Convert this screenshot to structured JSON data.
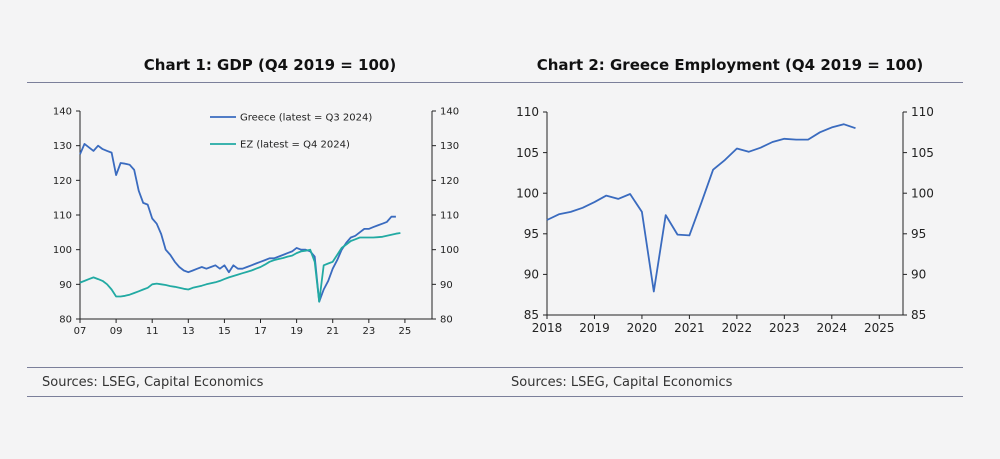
{
  "chart_data": [
    {
      "type": "line",
      "title": "Chart 1: GDP (Q4 2019 = 100)",
      "xlabel": "",
      "ylabel": "",
      "xlim": [
        2007,
        2026.5
      ],
      "ylim": [
        80,
        140
      ],
      "xticks": [
        2007,
        2009,
        2011,
        2013,
        2015,
        2017,
        2019,
        2021,
        2023,
        2025
      ],
      "xtick_labels": [
        "07",
        "09",
        "11",
        "13",
        "15",
        "17",
        "19",
        "21",
        "23",
        "25"
      ],
      "yticks": [
        80,
        90,
        100,
        110,
        120,
        130,
        140
      ],
      "y_axis_right": true,
      "grid": false,
      "legend_position": "top-center",
      "source": "Sources: LSEG, Capital Economics",
      "series": [
        {
          "name": "Greece (latest = Q3 2024)",
          "color": "#3a6bbf",
          "x": [
            2007.0,
            2007.25,
            2007.5,
            2007.75,
            2008.0,
            2008.25,
            2008.5,
            2008.75,
            2009.0,
            2009.25,
            2009.5,
            2009.75,
            2010.0,
            2010.25,
            2010.5,
            2010.75,
            2011.0,
            2011.25,
            2011.5,
            2011.75,
            2012.0,
            2012.25,
            2012.5,
            2012.75,
            2013.0,
            2013.25,
            2013.5,
            2013.75,
            2014.0,
            2014.25,
            2014.5,
            2014.75,
            2015.0,
            2015.25,
            2015.5,
            2015.75,
            2016.0,
            2016.25,
            2016.5,
            2016.75,
            2017.0,
            2017.25,
            2017.5,
            2017.75,
            2018.0,
            2018.25,
            2018.5,
            2018.75,
            2019.0,
            2019.25,
            2019.5,
            2019.75,
            2020.0,
            2020.25,
            2020.5,
            2020.75,
            2021.0,
            2021.25,
            2021.5,
            2021.75,
            2022.0,
            2022.25,
            2022.5,
            2022.75,
            2023.0,
            2023.25,
            2023.5,
            2023.75,
            2024.0,
            2024.25,
            2024.5
          ],
          "values": [
            127.5,
            130.5,
            129.5,
            128.5,
            130.0,
            129.0,
            128.5,
            128.0,
            121.5,
            125.0,
            124.8,
            124.5,
            123.0,
            117.0,
            113.5,
            113.0,
            109.0,
            107.5,
            104.5,
            100.0,
            98.5,
            96.5,
            95.0,
            94.0,
            93.5,
            94.0,
            94.5,
            95.0,
            94.5,
            95.0,
            95.5,
            94.5,
            95.5,
            93.5,
            95.5,
            94.5,
            94.5,
            95.0,
            95.5,
            96.0,
            96.5,
            97.0,
            97.5,
            97.5,
            98.0,
            98.5,
            99.0,
            99.5,
            100.5,
            100.0,
            100.0,
            99.5,
            98.0,
            85.0,
            88.5,
            91.0,
            94.5,
            97.0,
            100.0,
            102.0,
            103.5,
            104.0,
            105.0,
            106.0,
            106.0,
            106.5,
            107.0,
            107.5,
            108.0,
            109.5,
            109.5
          ]
        },
        {
          "name": "EZ (latest = Q4 2024)",
          "color": "#22aaa3",
          "x": [
            2007.0,
            2007.25,
            2007.5,
            2007.75,
            2008.0,
            2008.25,
            2008.5,
            2008.75,
            2009.0,
            2009.25,
            2009.5,
            2009.75,
            2010.0,
            2010.25,
            2010.5,
            2010.75,
            2011.0,
            2011.25,
            2011.5,
            2011.75,
            2012.0,
            2012.25,
            2012.5,
            2012.75,
            2013.0,
            2013.25,
            2013.5,
            2013.75,
            2014.0,
            2014.25,
            2014.5,
            2014.75,
            2015.0,
            2015.25,
            2015.5,
            2015.75,
            2016.0,
            2016.25,
            2016.5,
            2016.75,
            2017.0,
            2017.25,
            2017.5,
            2017.75,
            2018.0,
            2018.25,
            2018.5,
            2018.75,
            2019.0,
            2019.25,
            2019.5,
            2019.75,
            2020.0,
            2020.25,
            2020.5,
            2020.75,
            2021.0,
            2021.25,
            2021.5,
            2021.75,
            2022.0,
            2022.25,
            2022.5,
            2022.75,
            2023.0,
            2023.25,
            2023.5,
            2023.75,
            2024.0,
            2024.25,
            2024.5,
            2024.75
          ],
          "values": [
            90.5,
            91.0,
            91.5,
            92.0,
            91.5,
            91.0,
            90.0,
            88.5,
            86.5,
            86.5,
            86.7,
            87.0,
            87.5,
            88.0,
            88.5,
            89.0,
            90.0,
            90.2,
            90.0,
            89.8,
            89.5,
            89.3,
            89.0,
            88.7,
            88.5,
            89.0,
            89.3,
            89.6,
            90.0,
            90.3,
            90.6,
            91.0,
            91.5,
            92.0,
            92.4,
            92.8,
            93.2,
            93.6,
            94.0,
            94.5,
            95.0,
            95.7,
            96.5,
            97.0,
            97.3,
            97.6,
            98.0,
            98.3,
            99.0,
            99.5,
            99.7,
            100.0,
            96.5,
            85.0,
            95.5,
            96.0,
            96.5,
            98.5,
            100.5,
            101.5,
            102.5,
            103.0,
            103.5,
            103.5,
            103.5,
            103.5,
            103.6,
            103.7,
            104.0,
            104.3,
            104.6,
            104.8
          ]
        }
      ]
    },
    {
      "type": "line",
      "title": "Chart 2: Greece Employment (Q4 2019 = 100)",
      "xlabel": "",
      "ylabel": "",
      "xlim": [
        2018,
        2025.5
      ],
      "ylim": [
        85,
        110
      ],
      "xticks": [
        2018,
        2019,
        2020,
        2021,
        2022,
        2023,
        2024,
        2025
      ],
      "xtick_labels": [
        "2018",
        "2019",
        "2020",
        "2021",
        "2022",
        "2023",
        "2024",
        "2025"
      ],
      "yticks": [
        85,
        90,
        95,
        100,
        105,
        110
      ],
      "y_axis_right": true,
      "grid": false,
      "source": "Sources: LSEG, Capital Economics",
      "series": [
        {
          "color": "#3a6bbf",
          "x": [
            2018.0,
            2018.25,
            2018.5,
            2018.75,
            2019.0,
            2019.25,
            2019.5,
            2019.75,
            2020.0,
            2020.25,
            2020.5,
            2020.75,
            2021.0,
            2021.25,
            2021.5,
            2021.75,
            2022.0,
            2022.25,
            2022.5,
            2022.75,
            2023.0,
            2023.25,
            2023.5,
            2023.75,
            2024.0,
            2024.25,
            2024.5
          ],
          "values": [
            96.7,
            97.4,
            97.7,
            98.2,
            98.9,
            99.7,
            99.3,
            99.9,
            97.7,
            87.9,
            97.3,
            94.9,
            94.8,
            98.8,
            102.9,
            104.1,
            105.5,
            105.1,
            105.6,
            106.3,
            106.7,
            106.6,
            106.6,
            107.5,
            108.1,
            108.5,
            108.0
          ]
        }
      ]
    }
  ]
}
